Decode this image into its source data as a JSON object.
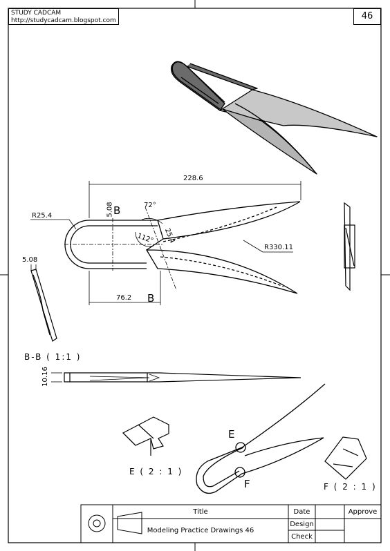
{
  "header": {
    "line1": "STUDY CADCAM",
    "line2": "http://studycadcam.blogspot.com",
    "page_number": "46"
  },
  "title_block": {
    "title_header": "Title",
    "title_value": "Modeling Practice Drawings 46",
    "date": "Date",
    "design": "Design",
    "check": "Check",
    "approve": "Approve"
  },
  "dimensions": {
    "overall_length": "228.6",
    "loop_radius": "R25.4",
    "blade_radius": "R330.11",
    "angle_outer": "72°",
    "angle_inner": "112°",
    "slot_width": "5.08",
    "blade_gap": "25.4",
    "loop_length": "76.2",
    "side_thickness": "5.08",
    "section_height": "10.16"
  },
  "labels": {
    "section_mark_top": "B",
    "section_mark_bottom": "B",
    "detail_e": "E",
    "detail_f": "F",
    "section_view": "B-B ( 1:1 )",
    "detail_view_e": "E ( 2 : 1 )",
    "detail_view_f": "F ( 2 : 1 )"
  }
}
